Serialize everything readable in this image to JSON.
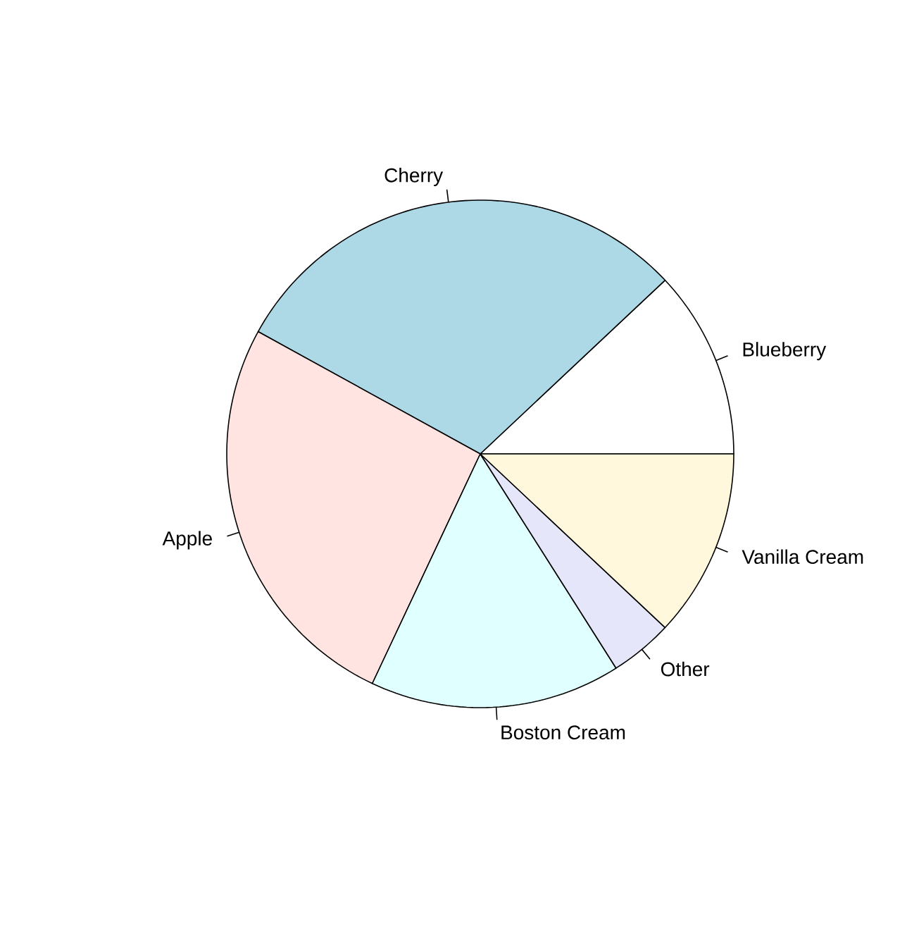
{
  "chart_data": {
    "type": "pie",
    "categories": [
      "Blueberry",
      "Cherry",
      "Apple",
      "Boston Cream",
      "Other",
      "Vanilla Cream"
    ],
    "values": [
      12,
      30,
      26,
      16,
      4,
      12
    ],
    "colors": [
      "#ffffff",
      "#add8e6",
      "#ffe4e1",
      "#e0ffff",
      "#e6e6fa",
      "#fff8dc"
    ]
  }
}
